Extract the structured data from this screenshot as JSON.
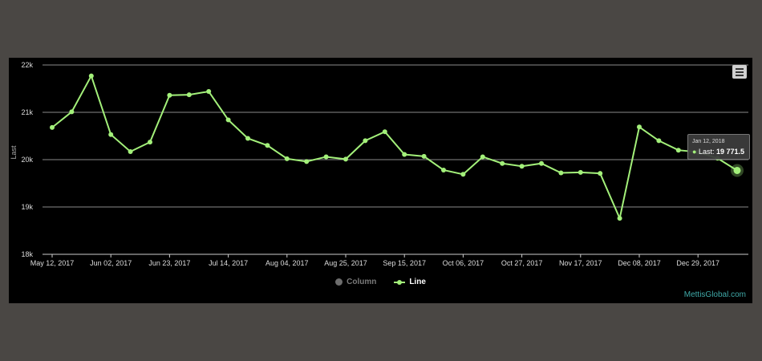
{
  "chart_data": {
    "type": "line",
    "ylabel": "Last",
    "ylim": [
      18000,
      22000
    ],
    "yticks": [
      {
        "value": 18000,
        "label": "18k"
      },
      {
        "value": 19000,
        "label": "19k"
      },
      {
        "value": 20000,
        "label": "20k"
      },
      {
        "value": 21000,
        "label": "21k"
      },
      {
        "value": 22000,
        "label": "22k"
      }
    ],
    "xtick_labels": [
      "May 12, 2017",
      "Jun 02, 2017",
      "Jun 23, 2017",
      "Jul 14, 2017",
      "Aug 04, 2017",
      "Aug 25, 2017",
      "Sep 15, 2017",
      "Oct 06, 2017",
      "Oct 27, 2017",
      "Nov 17, 2017",
      "Dec 08, 2017",
      "Dec 29, 2017"
    ],
    "legend": [
      {
        "name": "Column",
        "visible": false,
        "color": "#6d6d6d"
      },
      {
        "name": "Line",
        "visible": true,
        "color": "#a3f07a"
      }
    ],
    "series": [
      {
        "name": "Line",
        "color": "#a3f07a",
        "values": [
          20680,
          21010,
          21770,
          20530,
          20170,
          20370,
          21360,
          21370,
          21440,
          20840,
          20450,
          20300,
          20020,
          19960,
          20060,
          20010,
          20400,
          20590,
          20110,
          20070,
          19780,
          19690,
          20060,
          19920,
          19860,
          19920,
          19720,
          19730,
          19710,
          18760,
          20690,
          20400,
          20200,
          20160,
          20030,
          19771.5
        ]
      }
    ],
    "tooltip": {
      "date": "Jan 12, 2018",
      "label": "Last:",
      "value": "19 771.5"
    }
  },
  "watermark": "MettisGlobal.com",
  "menu_icon": "hamburger-menu-icon"
}
